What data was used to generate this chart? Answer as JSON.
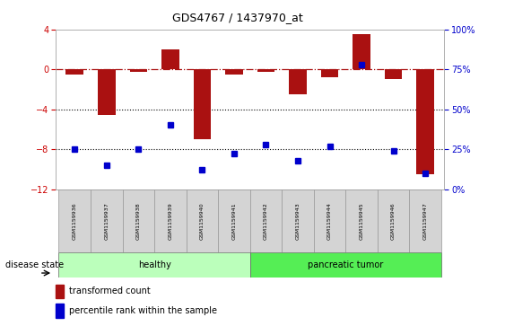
{
  "title": "GDS4767 / 1437970_at",
  "samples": [
    "GSM1159936",
    "GSM1159937",
    "GSM1159938",
    "GSM1159939",
    "GSM1159940",
    "GSM1159941",
    "GSM1159942",
    "GSM1159943",
    "GSM1159944",
    "GSM1159945",
    "GSM1159946",
    "GSM1159947"
  ],
  "transformed_count": [
    -0.5,
    -4.6,
    -0.3,
    2.0,
    -7.0,
    -0.5,
    -0.3,
    -2.5,
    -0.8,
    3.5,
    -1.0,
    -10.5
  ],
  "percentile_rank": [
    25,
    15,
    25,
    40,
    12,
    22,
    28,
    18,
    27,
    78,
    24,
    10
  ],
  "groups": [
    "healthy",
    "healthy",
    "healthy",
    "healthy",
    "healthy",
    "healthy",
    "pancreatic tumor",
    "pancreatic tumor",
    "pancreatic tumor",
    "pancreatic tumor",
    "pancreatic tumor",
    "pancreatic tumor"
  ],
  "ylim_left": [
    -12,
    4
  ],
  "ylim_right": [
    0,
    100
  ],
  "yticks_left": [
    -12,
    -8,
    -4,
    0,
    4
  ],
  "yticks_right": [
    0,
    25,
    50,
    75,
    100
  ],
  "bar_color": "#aa1111",
  "point_color": "#0000cc",
  "healthy_color": "#bbffbb",
  "tumor_color": "#55ee55",
  "plot_bg": "#ffffff"
}
